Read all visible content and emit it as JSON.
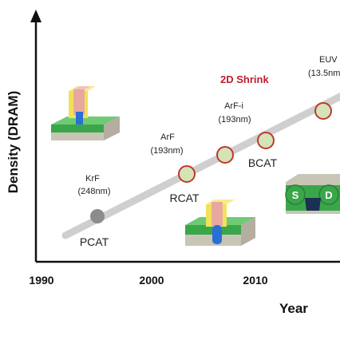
{
  "axes": {
    "y_title": "Density (DRAM)",
    "x_title": "Year",
    "x_ticks": [
      "1990",
      "2000",
      "2010"
    ]
  },
  "headline": "2D Shrink",
  "nodes": [
    {
      "id": "krf",
      "litho": "KrF",
      "wavelength": "(248nm)",
      "cell": "PCAT",
      "style": "gray"
    },
    {
      "id": "arf",
      "litho": "ArF",
      "wavelength": "(193nm)",
      "cell": "RCAT",
      "style": "ring"
    },
    {
      "id": "arfi1",
      "litho": "",
      "wavelength": "",
      "cell": "",
      "style": "ring"
    },
    {
      "id": "arfi2",
      "litho": "ArF-i",
      "wavelength": "(193nm)",
      "cell": "BCAT",
      "style": "ring"
    },
    {
      "id": "euv",
      "litho": "EUV",
      "wavelength": "(13.5nm",
      "cell": "",
      "style": "ring"
    }
  ],
  "device_labels": {
    "source": "S",
    "drain": "D"
  },
  "colors": {
    "trend_line": "#cfcfcf",
    "ring_stroke": "#c0392b",
    "ring_fill": "#d4e3b8",
    "gray_node": "#8c8c8c",
    "headline": "#c01d2c",
    "silicon_green": "#3aa64a",
    "gate_pink": "#e8a8a0",
    "spacer_yellow": "#f1e15a",
    "channel_blue": "#2a6fd6"
  }
}
